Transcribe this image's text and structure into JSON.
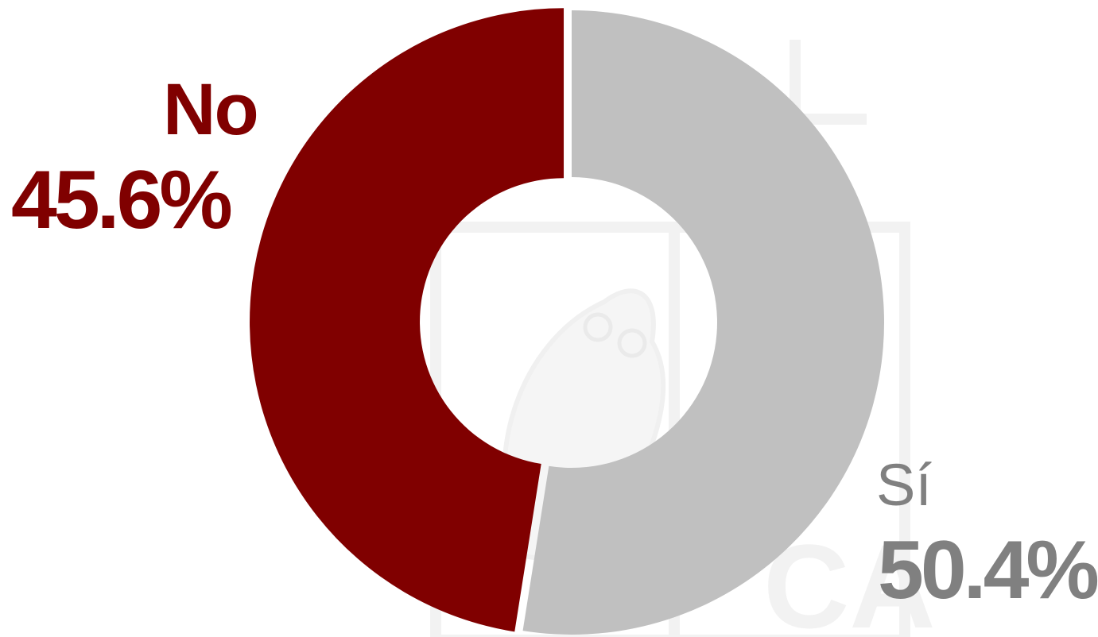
{
  "chart_data": {
    "type": "pie",
    "variant": "donut",
    "slices": [
      {
        "label": "No",
        "value_label": "45.6%",
        "value": 45.6,
        "color": "#800000"
      },
      {
        "label": "Sí",
        "value_label": "50.4%",
        "value": 50.4,
        "color": "#c0c0c0"
      }
    ],
    "label_colors": {
      "No": "#800000",
      "Sí": "#808080"
    },
    "watermark": "owl logo",
    "legend": "none"
  }
}
